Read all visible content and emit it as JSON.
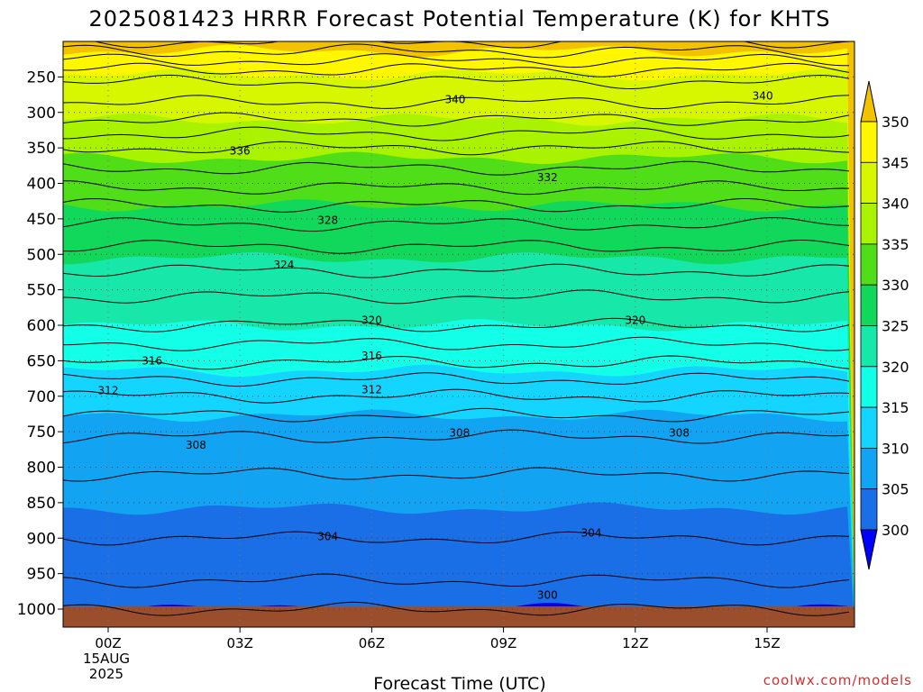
{
  "chart_data": {
    "type": "heatmap",
    "title": "2025081423 HRRR Forecast Potential Temperature (K) for KHTS",
    "xlabel": "Forecast Time (UTC)",
    "ylabel": "",
    "credit": "coolwx.com/models",
    "x_ticks": [
      {
        "label": "00Z",
        "sub": [
          "15AUG",
          "2025"
        ],
        "hour": 0
      },
      {
        "label": "03Z",
        "sub": [],
        "hour": 3
      },
      {
        "label": "06Z",
        "sub": [],
        "hour": 6
      },
      {
        "label": "09Z",
        "sub": [],
        "hour": 9
      },
      {
        "label": "12Z",
        "sub": [],
        "hour": 12
      },
      {
        "label": "15Z",
        "sub": [],
        "hour": 15
      }
    ],
    "x_range_hours": [
      -1,
      17
    ],
    "y_axis": "pressure (hPa), inverted",
    "y_range": [
      1000,
      200
    ],
    "y_ticks": [
      250,
      300,
      350,
      400,
      450,
      500,
      550,
      600,
      650,
      700,
      750,
      800,
      850,
      900,
      950,
      1000
    ],
    "grid": "dotted",
    "colorbar": {
      "ticks": [
        350,
        345,
        340,
        335,
        330,
        325,
        320,
        315,
        310,
        305,
        300
      ],
      "colors": [
        "#f2c100",
        "#fff700",
        "#d6f700",
        "#a9f200",
        "#4fde17",
        "#11d85a",
        "#17e8a9",
        "#14ffe8",
        "#14d5ff",
        "#12a3f2",
        "#1a6fe6",
        "#1850e2",
        "#0000ff"
      ],
      "extend": "both"
    },
    "levels": [
      {
        "p": 200,
        "t": 352
      },
      {
        "p": 250,
        "t": 344.5
      },
      {
        "p": 300,
        "t": 341
      },
      {
        "p": 350,
        "t": 336
      },
      {
        "p": 400,
        "t": 332.5
      },
      {
        "p": 450,
        "t": 328.5
      },
      {
        "p": 500,
        "t": 325.3
      },
      {
        "p": 550,
        "t": 322.5
      },
      {
        "p": 600,
        "t": 320
      },
      {
        "p": 650,
        "t": 316.2
      },
      {
        "p": 700,
        "t": 312
      },
      {
        "p": 750,
        "t": 308.3
      },
      {
        "p": 800,
        "t": 306.2
      },
      {
        "p": 850,
        "t": 305.2
      },
      {
        "p": 900,
        "t": 304
      },
      {
        "p": 950,
        "t": 302.5
      },
      {
        "p": 1000,
        "t": 300
      }
    ],
    "contour_labels": [
      {
        "value": "340",
        "hour": 7.9,
        "p": 282
      },
      {
        "value": "340",
        "hour": 14.9,
        "p": 277
      },
      {
        "value": "336",
        "hour": 3.0,
        "p": 354
      },
      {
        "value": "332",
        "hour": 10.0,
        "p": 392
      },
      {
        "value": "328",
        "hour": 5.0,
        "p": 452
      },
      {
        "value": "324",
        "hour": 4.0,
        "p": 515
      },
      {
        "value": "320",
        "hour": 6.0,
        "p": 593
      },
      {
        "value": "320",
        "hour": 12.0,
        "p": 593
      },
      {
        "value": "316",
        "hour": 1.0,
        "p": 650
      },
      {
        "value": "316",
        "hour": 6.0,
        "p": 643
      },
      {
        "value": "312",
        "hour": 0.0,
        "p": 692
      },
      {
        "value": "312",
        "hour": 6.0,
        "p": 691
      },
      {
        "value": "308",
        "hour": 2.0,
        "p": 769
      },
      {
        "value": "308",
        "hour": 8.0,
        "p": 752
      },
      {
        "value": "308",
        "hour": 13.0,
        "p": 752
      },
      {
        "value": "304",
        "hour": 5.0,
        "p": 898
      },
      {
        "value": "304",
        "hour": 11.0,
        "p": 893
      },
      {
        "value": "300",
        "hour": 10.0,
        "p": 980
      }
    ]
  }
}
